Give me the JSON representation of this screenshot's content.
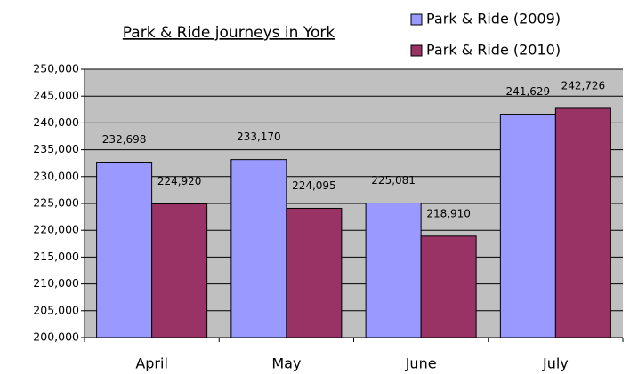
{
  "chart_data": {
    "type": "bar",
    "title": "Park & Ride journeys in York",
    "categories": [
      "April",
      "May",
      "June",
      "July"
    ],
    "series": [
      {
        "name": "Park & Ride (2009)",
        "color": "#9999ff",
        "values": [
          232698,
          233170,
          225081,
          241629
        ],
        "value_labels": [
          "232,698",
          "233,170",
          "225,081",
          "241,629"
        ]
      },
      {
        "name": "Park & Ride (2010)",
        "color": "#993366",
        "values": [
          224920,
          224095,
          218910,
          242726
        ],
        "value_labels": [
          "224,920",
          "224,095",
          "218,910",
          "242,726"
        ]
      }
    ],
    "ylim": [
      200000,
      250000
    ],
    "yticks": [
      {
        "value": 200000,
        "label": "200,000"
      },
      {
        "value": 205000,
        "label": "205,000"
      },
      {
        "value": 210000,
        "label": "210,000"
      },
      {
        "value": 215000,
        "label": "215,000"
      },
      {
        "value": 220000,
        "label": "220,000"
      },
      {
        "value": 225000,
        "label": "225,000"
      },
      {
        "value": 230000,
        "label": "230,000"
      },
      {
        "value": 235000,
        "label": "235,000"
      },
      {
        "value": 240000,
        "label": "240,000"
      },
      {
        "value": 245000,
        "label": "245,000"
      },
      {
        "value": 250000,
        "label": "250,000"
      }
    ],
    "grid": true,
    "legend": "top-right"
  }
}
